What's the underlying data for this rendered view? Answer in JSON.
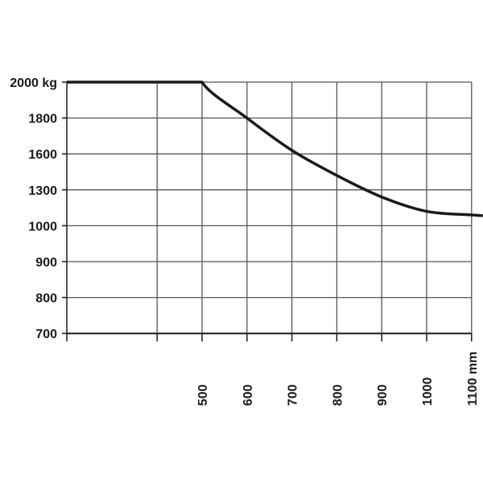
{
  "colors": {
    "background": "#ffffff",
    "grid": "#555555",
    "axis": "#1a1a1a",
    "curve": "#1a1a1a",
    "text": "#1a1a1a"
  },
  "chart_data": {
    "type": "line",
    "title": "",
    "xlabel": "",
    "ylabel": "",
    "grid": true,
    "legend": "none",
    "x_grid_values": [
      400,
      500,
      600,
      700,
      800,
      900,
      1000,
      1100
    ],
    "x_tick_labels": [
      {
        "x": 500,
        "label": "500"
      },
      {
        "x": 600,
        "label": "600"
      },
      {
        "x": 700,
        "label": "700"
      },
      {
        "x": 800,
        "label": "800"
      },
      {
        "x": 900,
        "label": "900"
      },
      {
        "x": 1000,
        "label": "1000"
      },
      {
        "x": 1100,
        "label": "1100 mm"
      }
    ],
    "y_scale": "categorical",
    "y_ticks": [
      "700",
      "800",
      "900",
      "1000",
      "1300",
      "1600",
      "1800",
      "2000 kg"
    ],
    "y_values_numeric": [
      700,
      800,
      900,
      1000,
      1300,
      1600,
      1800,
      2000
    ],
    "xlim": [
      200,
      1100
    ],
    "series": [
      {
        "x": [
          200,
          500,
          600,
          700,
          800,
          900,
          1000,
          1100
        ],
        "y_level": [
          7,
          7,
          6,
          5.1,
          4.4,
          3.8,
          3.4,
          3.3
        ]
      }
    ]
  }
}
